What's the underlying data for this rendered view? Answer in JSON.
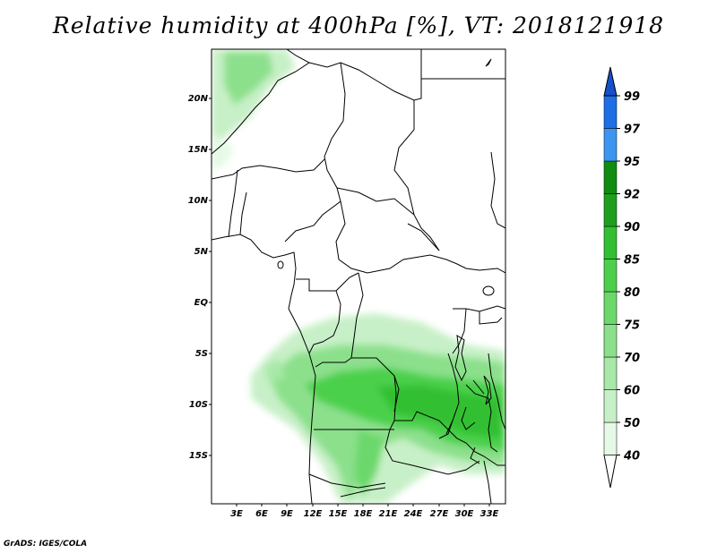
{
  "title": "Relative humidity at 400hPa [%], VT: 2018121918",
  "credit": "GrADS: IGES/COLA",
  "map": {
    "lon_labels": [
      "3E",
      "6E",
      "9E",
      "12E",
      "15E",
      "18E",
      "21E",
      "24E",
      "27E",
      "30E",
      "33E"
    ],
    "lat_labels": [
      "20N",
      "15N",
      "10N",
      "5N",
      "EQ",
      "5S",
      "10S",
      "15S"
    ],
    "region": "Central Africa"
  },
  "colorbar": {
    "levels": [
      "40",
      "50",
      "60",
      "70",
      "75",
      "80",
      "85",
      "90",
      "92",
      "95",
      "97",
      "99"
    ],
    "colors": [
      "#ffffff",
      "#e6f9e6",
      "#c8f0c8",
      "#a8e8a8",
      "#8ce08c",
      "#6cd86c",
      "#4cd04c",
      "#32c032",
      "#1ea01e",
      "#108c10",
      "#3c96f0",
      "#1e6ee6",
      "#1450c8"
    ]
  }
}
